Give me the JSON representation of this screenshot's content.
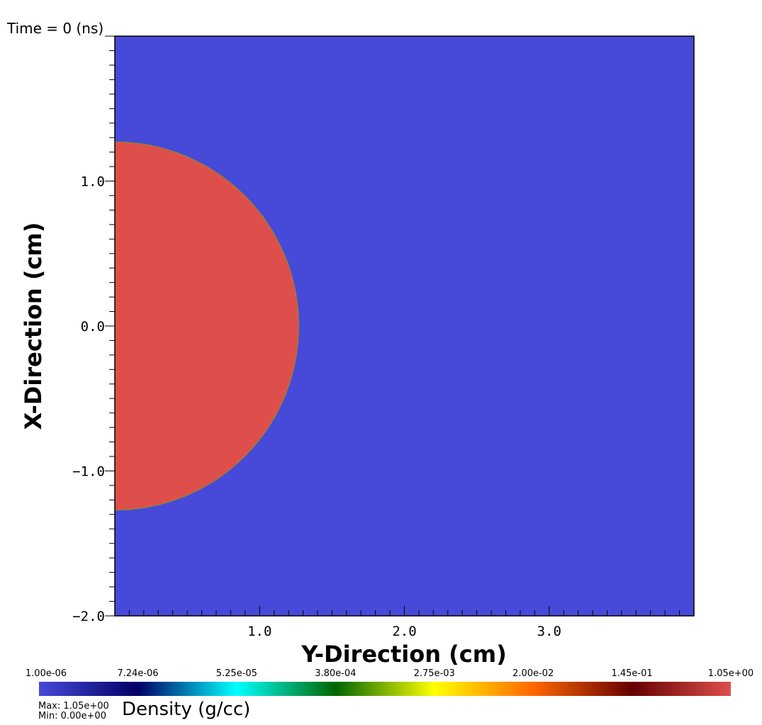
{
  "chart_data": {
    "type": "heatmap",
    "title": "Time = 0 (ns)",
    "xlabel": "Y-Direction (cm)",
    "ylabel": "X-Direction (cm)",
    "xlim": [
      0.0,
      4.0
    ],
    "ylim": [
      -2.0,
      2.0
    ],
    "x_ticks": [
      "1.0",
      "2.0",
      "3.0"
    ],
    "x_tick_values": [
      1.0,
      2.0,
      3.0
    ],
    "y_ticks": [
      "1.0",
      "0.0",
      "−1.0",
      "−2.0"
    ],
    "y_tick_values": [
      1.0,
      0.0,
      -1.0,
      -2.0
    ],
    "regions": [
      {
        "shape": "background",
        "value": 1e-06,
        "color": "#4749d8"
      },
      {
        "shape": "half-disk",
        "center": [
          0.0,
          0.0
        ],
        "radius": 1.27,
        "value": 1.05,
        "color": "#de4f4c"
      }
    ],
    "colorbar": {
      "label": "Density (g/cc)",
      "scale": "log",
      "tick_labels": [
        "1.00e-06",
        "7.24e-06",
        "5.25e-05",
        "3.80e-04",
        "2.75e-03",
        "2.00e-02",
        "1.45e-01",
        "1.05e+00"
      ],
      "max_label": "Max:",
      "max_value": "1.05e+00",
      "min_label": "Min:",
      "min_value": "0.00e+00",
      "colors": [
        "#4749d8",
        "#000066",
        "#00ffff",
        "#006600",
        "#ffff00",
        "#ff6600",
        "#660000",
        "#de4f4c"
      ]
    }
  }
}
